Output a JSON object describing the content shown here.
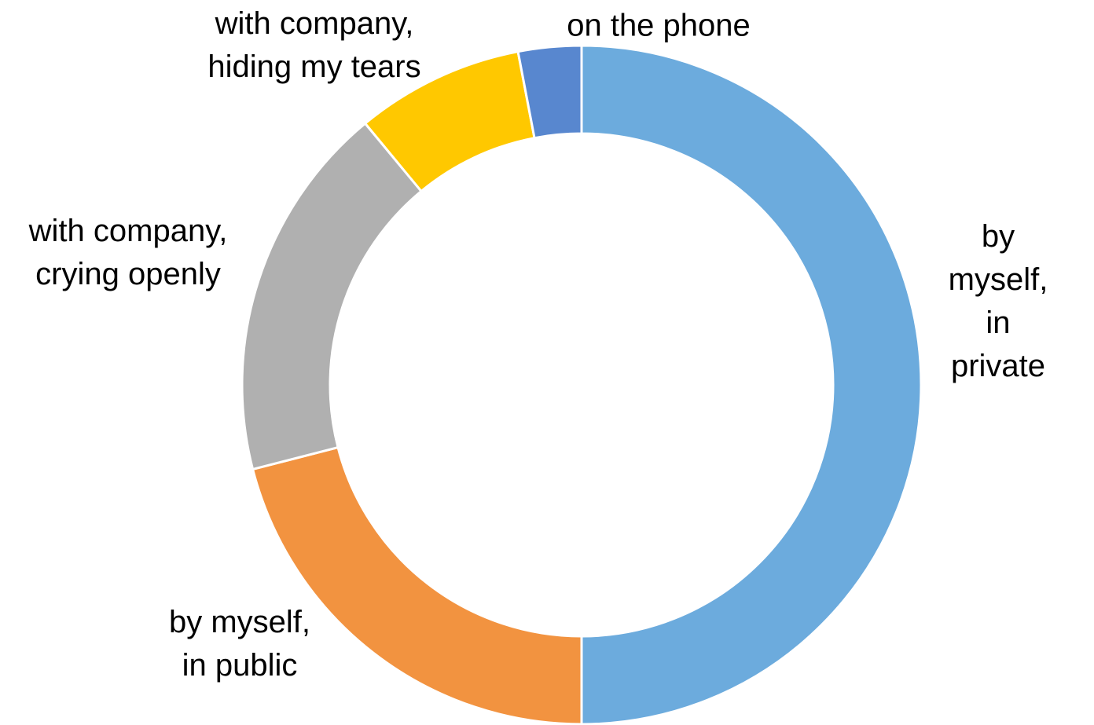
{
  "chart_data": {
    "type": "donut",
    "categories": [
      "by myself,\nin private",
      "by myself,\nin public",
      "with company,\ncrying openly",
      "with company,\nhiding my tears",
      "on the phone"
    ],
    "values": [
      50,
      21,
      18,
      8,
      3
    ],
    "colors": [
      "#6cabdd",
      "#f29340",
      "#b0b0b0",
      "#ffc800",
      "#5887cf"
    ]
  }
}
